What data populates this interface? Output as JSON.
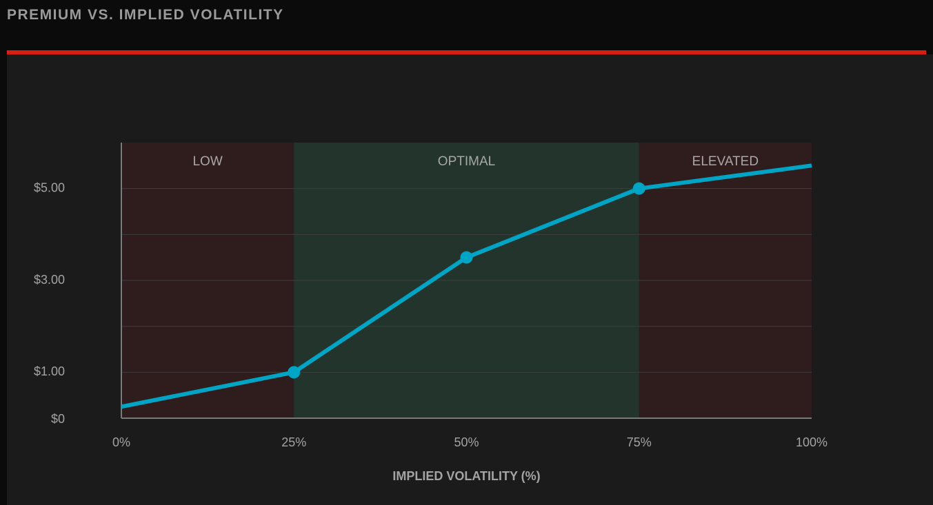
{
  "title": "PREMIUM VS. IMPLIED VOLATILITY",
  "colors": {
    "accent": "#d81e10",
    "line": "#00a4c4",
    "zone_low": "#2f1d1e",
    "zone_optimal": "#22342b",
    "zone_elevated": "#2f1d1e",
    "grid": "#3e3e3e",
    "axis": "#7a7a7a"
  },
  "chart_data": {
    "type": "line",
    "title": "PREMIUM VS. IMPLIED VOLATILITY",
    "xlabel": "IMPLIED VOLATILITY (%)",
    "ylabel": "",
    "xlim": [
      0,
      100
    ],
    "ylim": [
      0,
      6
    ],
    "x_ticks": [
      {
        "value": 0,
        "label": "0%"
      },
      {
        "value": 25,
        "label": "25%"
      },
      {
        "value": 50,
        "label": "50%"
      },
      {
        "value": 75,
        "label": "75%"
      },
      {
        "value": 100,
        "label": "100%"
      }
    ],
    "y_ticks": [
      {
        "value": 0,
        "label": "$0"
      },
      {
        "value": 1,
        "label": "$1.00"
      },
      {
        "value": 3,
        "label": "$3.00"
      },
      {
        "value": 5,
        "label": "$5.00"
      }
    ],
    "y_gridlines": [
      1,
      2,
      3,
      4,
      5
    ],
    "zones": [
      {
        "label": "LOW",
        "from": 0,
        "to": 25,
        "color": "#2f1d1e"
      },
      {
        "label": "OPTIMAL",
        "from": 25,
        "to": 75,
        "color": "#22342b"
      },
      {
        "label": "ELEVATED",
        "from": 75,
        "to": 100,
        "color": "#2f1d1e"
      }
    ],
    "series": [
      {
        "x": [
          0,
          25,
          50,
          75,
          100
        ],
        "values": [
          0.25,
          1.0,
          3.5,
          5.0,
          5.5
        ],
        "markers": [
          false,
          true,
          true,
          true,
          false
        ]
      }
    ],
    "grid": true,
    "legend": "none"
  }
}
